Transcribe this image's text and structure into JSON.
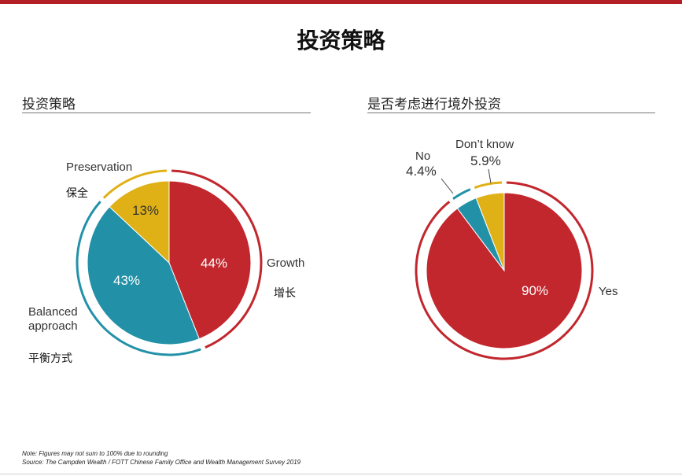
{
  "slide_title": "投资策略",
  "colors": {
    "red": "#c1272d",
    "teal": "#2291a8",
    "yellow": "#e0b116",
    "accent_bar": "#b21f24"
  },
  "left_panel": {
    "title": "投资策略"
  },
  "right_panel": {
    "title": "是否考虑进行境外投资"
  },
  "chart_data": [
    {
      "type": "pie",
      "title": "投资策略",
      "slices": [
        {
          "label": "Growth",
          "label_zh": "增长",
          "value": 44,
          "display": "44%",
          "color": "#c1272d"
        },
        {
          "label": "Balanced approach",
          "label_zh": "平衡方式",
          "value": 43,
          "display": "43%",
          "color": "#2291a8"
        },
        {
          "label": "Preservation",
          "label_zh": "保全",
          "value": 13,
          "display": "13%",
          "color": "#e0b116"
        }
      ]
    },
    {
      "type": "pie",
      "title": "是否考虑进行境外投资",
      "slices": [
        {
          "label": "Yes",
          "value": 90,
          "display": "90%",
          "color": "#c1272d"
        },
        {
          "label": "No",
          "value": 4.4,
          "display": "4.4%",
          "color": "#2291a8"
        },
        {
          "label": "Don’t know",
          "value": 5.9,
          "display": "5.9%",
          "color": "#e0b116"
        }
      ]
    }
  ],
  "notes": {
    "note": "Note: Figures may not sum to 100% due to rounding",
    "source": "Source: The Campden Wealth / FOTT Chinese Family Office and Wealth Management Survey 2019"
  }
}
